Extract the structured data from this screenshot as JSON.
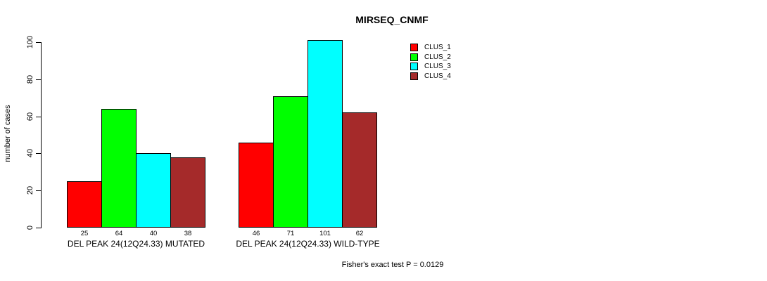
{
  "chart_data": {
    "type": "bar",
    "title": "MIRSEQ_CNMF",
    "xlabel": "",
    "ylabel": "number of cases",
    "ylim": [
      0,
      100
    ],
    "yticks": [
      0,
      20,
      40,
      60,
      80,
      100
    ],
    "grid": false,
    "legend_position": "top-right",
    "bar_value_labels_shown": true,
    "categories": [
      "DEL PEAK 24(12Q24.33) MUTATED",
      "DEL PEAK 24(12Q24.33) WILD-TYPE"
    ],
    "series": [
      {
        "name": "CLUS_1",
        "color": "#ff0000",
        "values": [
          25,
          46
        ]
      },
      {
        "name": "CLUS_2",
        "color": "#00ff00",
        "values": [
          64,
          71
        ]
      },
      {
        "name": "CLUS_3",
        "color": "#00ffff",
        "values": [
          40,
          101
        ]
      },
      {
        "name": "CLUS_4",
        "color": "#a52a2a",
        "values": [
          38,
          62
        ]
      }
    ],
    "annotation": "Fisher's exact test P = 0.0129"
  },
  "colors": {
    "background": "#ffffff",
    "axis": "#000000",
    "text": "#000000"
  }
}
